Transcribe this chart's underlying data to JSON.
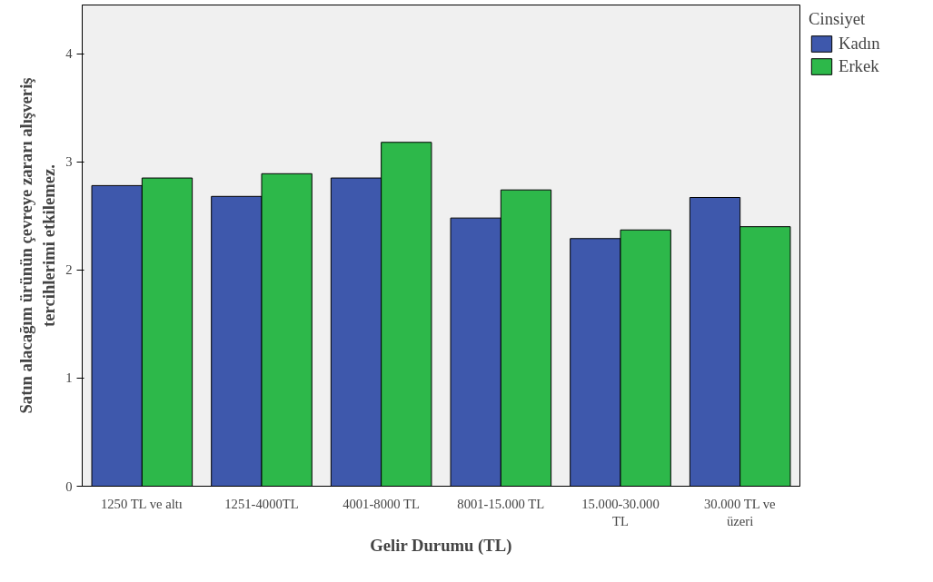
{
  "chart_data": {
    "type": "bar",
    "xlabel": "Gelir Durumu (TL)",
    "ylabel": "Satın alacağım ürünün çevreye zararı alışveriş tercihlerimi etkilemez.",
    "legend_title": "Cinsiyet",
    "categories": [
      "1250 TL ve altı",
      "1251-4000TL",
      "4001-8000 TL",
      "8001-15.000 TL",
      "15.000-30.000 TL",
      "30.000 TL ve üzeri"
    ],
    "series": [
      {
        "name": "Kadın",
        "color": "#3e58ac",
        "values": [
          2.78,
          2.68,
          2.85,
          2.48,
          2.29,
          2.67
        ]
      },
      {
        "name": "Erkek",
        "color": "#2db84a",
        "values": [
          2.85,
          2.89,
          3.18,
          2.74,
          2.37,
          2.4
        ]
      }
    ],
    "ylim": [
      0,
      4.45
    ],
    "yticks": [
      0,
      1,
      2,
      3,
      4
    ],
    "grid": false,
    "legend": "right"
  }
}
